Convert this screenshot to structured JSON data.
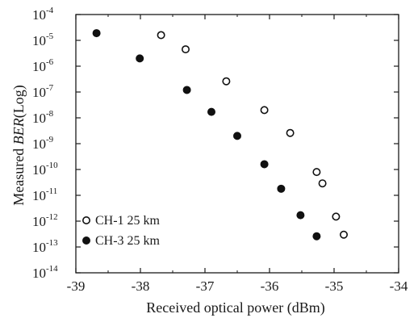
{
  "chart_data": {
    "type": "scatter",
    "xlabel": "Received optical power (dBm)",
    "ylabel_prefix": "Measured ",
    "ylabel_italic": "BER",
    "ylabel_suffix": "(Log)",
    "xlim": [
      -39,
      -34
    ],
    "ylim_log10": [
      -14,
      -4
    ],
    "x_ticks": [
      -39,
      -38,
      -37,
      -36,
      -35,
      -34
    ],
    "x_tick_labels": [
      "-39",
      "-38",
      "-37",
      "-36",
      "-35",
      "-34"
    ],
    "y_tick_base": "10",
    "y_tick_exponents": [
      "-4",
      "-5",
      "-6",
      "-7",
      "-8",
      "-9",
      "-10",
      "-11",
      "-12",
      "-13",
      "-14"
    ],
    "grid": false,
    "legend_position": "bottom-left",
    "series": [
      {
        "name": "CH-1 25 km",
        "marker": "open-circle",
        "x": [
          -37.68,
          -37.3,
          -36.67,
          -36.08,
          -35.68,
          -35.27,
          -35.18,
          -34.97,
          -34.85
        ],
        "y": [
          1.6e-05,
          4.5e-06,
          2.6e-07,
          2e-08,
          2.6e-09,
          8e-11,
          2.9e-11,
          1.5e-12,
          3e-13
        ]
      },
      {
        "name": "CH-3 25 km",
        "marker": "filled-circle",
        "x": [
          -38.68,
          -38.01,
          -37.28,
          -36.9,
          -36.5,
          -36.08,
          -35.82,
          -35.52,
          -35.27
        ],
        "y": [
          1.9e-05,
          2e-06,
          1.2e-07,
          1.7e-08,
          2e-09,
          1.6e-10,
          1.8e-11,
          1.7e-12,
          2.6e-13
        ]
      }
    ]
  }
}
